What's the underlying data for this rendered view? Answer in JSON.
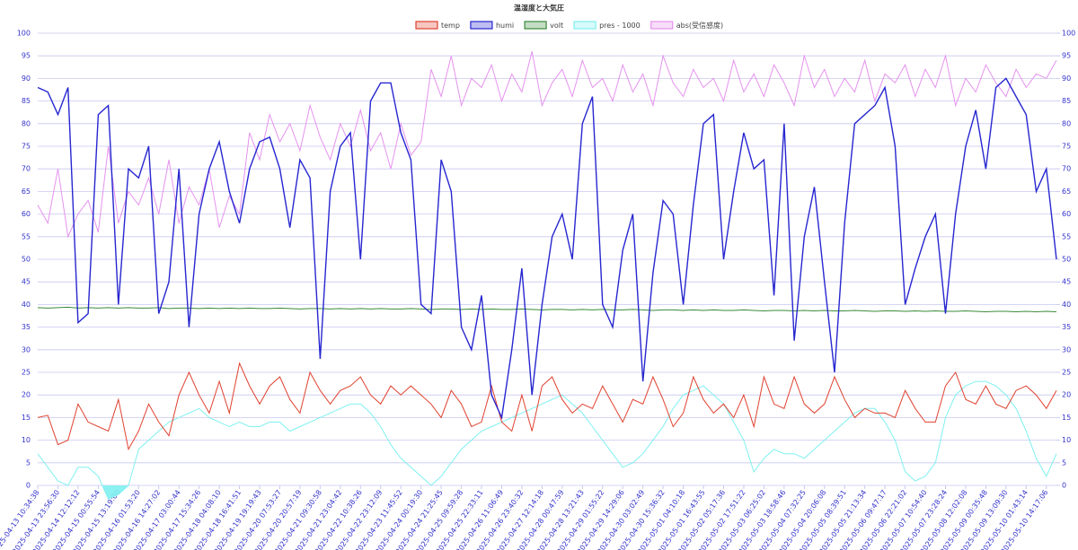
{
  "chart_data": {
    "type": "line",
    "title": "温湿度と大気圧",
    "categories": [
      "2025-04-13 10:34:38",
      null,
      "2025-04-13 23:56:30",
      null,
      "2025-04-14 12:12:12",
      null,
      "2025-04-15 00:55:54",
      null,
      "2025-04-15 13:19:00",
      null,
      "2025-04-16 01:53:20",
      null,
      "2025-04-16 14:27:02",
      null,
      "2025-04-17 03:00:44",
      null,
      "2025-04-17 15:34:26",
      null,
      "2025-04-18 04:08:10",
      null,
      "2025-04-18 16:41:51",
      null,
      "2025-04-19 19:19:43",
      null,
      "2025-04-20 07:53:27",
      null,
      "2025-04-20 20:57:19",
      null,
      "2025-04-21 09:30:58",
      null,
      "2025-04-21 23:04:42",
      null,
      "2025-04-22 10:38:26",
      null,
      "2025-04-22 23:12:09",
      null,
      "2025-04-23 11:45:52",
      null,
      "2025-04-24 00:19:30",
      null,
      "2025-04-24 21:25:45",
      null,
      "2025-04-25 09:59:28",
      null,
      "2025-04-25 22:33:11",
      null,
      "2025-04-26 11:06:49",
      null,
      "2025-04-26 23:40:32",
      null,
      "2025-04-27 12:14:18",
      null,
      "2025-04-28 00:47:59",
      null,
      "2025-04-28 13:21:43",
      null,
      "2025-04-29 01:55:22",
      null,
      "2025-04-29 14:29:06",
      null,
      "2025-04-30 03:02:49",
      null,
      "2025-04-30 15:36:32",
      null,
      "2025-05-01 04:10:18",
      null,
      "2025-05-01 16:43:55",
      null,
      "2025-05-02 05:17:36",
      null,
      "2025-05-02 17:51:22",
      null,
      "2025-05-03 06:25:02",
      null,
      "2025-05-03 18:58:46",
      null,
      "2025-05-04 07:32:25",
      null,
      "2025-05-04 20:06:08",
      null,
      "2025-05-05 08:39:51",
      null,
      "2025-05-05 21:13:34",
      null,
      "2025-05-06 09:47:17",
      null,
      "2025-05-06 22:21:02",
      null,
      "2025-05-07 10:54:40",
      null,
      "2025-05-07 23:28:24",
      null,
      "2025-05-08 12:02:08",
      null,
      "2025-05-09 00:35:48",
      null,
      "2025-05-09 13:09:30",
      null,
      "2025-05-10 01:43:14",
      null,
      "2025-05-10 14:17:06",
      null
    ],
    "series": [
      {
        "name": "temp",
        "color": "#e0412f",
        "values": [
          15,
          15.5,
          9,
          10,
          18,
          14,
          13,
          12,
          19,
          8,
          12,
          18,
          14,
          11,
          20,
          25,
          20,
          16,
          23,
          16,
          27,
          22,
          18,
          22,
          24,
          19,
          16,
          25,
          21,
          18,
          21,
          22,
          24,
          20,
          18,
          22,
          20,
          22,
          20,
          18,
          15,
          21,
          18,
          13,
          14,
          22,
          14,
          12,
          20,
          12,
          22,
          24,
          19,
          16,
          18,
          17,
          22,
          18,
          14,
          19,
          18,
          24,
          19,
          13,
          16,
          24,
          19,
          16,
          18,
          15,
          20,
          13,
          24,
          18,
          17,
          24,
          18,
          16,
          18,
          24,
          19,
          15,
          17,
          16,
          16,
          15,
          21,
          17,
          14,
          14,
          22,
          25,
          19,
          18,
          22,
          18,
          17,
          21,
          22,
          20,
          17,
          21
        ]
      },
      {
        "name": "humi",
        "color": "#2626d0",
        "values": [
          88,
          87,
          82,
          88,
          36,
          38,
          82,
          84,
          40,
          70,
          68,
          75,
          38,
          45,
          70,
          35,
          60,
          70,
          76,
          65,
          58,
          70,
          76,
          77,
          70,
          57,
          72,
          68,
          28,
          65,
          75,
          78,
          50,
          85,
          89,
          89,
          78,
          72,
          40,
          38,
          72,
          65,
          35,
          30,
          42,
          20,
          15,
          30,
          48,
          20,
          40,
          55,
          60,
          50,
          80,
          86,
          40,
          35,
          52,
          60,
          23,
          47,
          63,
          60,
          40,
          62,
          80,
          82,
          50,
          65,
          78,
          70,
          72,
          42,
          80,
          32,
          55,
          66,
          45,
          25,
          58,
          80,
          82,
          84,
          88,
          75,
          40,
          48,
          55,
          60,
          38,
          60,
          75,
          83,
          70,
          88,
          90,
          86,
          82,
          65,
          70,
          50
        ]
      },
      {
        "name": "volt",
        "color": "#3a8a3a",
        "values": [
          39.3,
          39.2,
          39.3,
          39.4,
          39.2,
          39.3,
          39.2,
          39.3,
          39.2,
          39.3,
          39.2,
          39.2,
          39.3,
          39.1,
          39.2,
          39.2,
          39.1,
          39.2,
          39.1,
          39.2,
          39.1,
          39.2,
          39.1,
          39.1,
          39.2,
          39.1,
          39,
          39.1,
          39.1,
          39,
          39.1,
          39,
          39.1,
          39,
          39.1,
          39,
          39,
          39.1,
          39,
          38.9,
          39,
          39,
          38.9,
          39,
          38.9,
          39,
          38.9,
          38.9,
          39,
          38.9,
          38.8,
          38.9,
          38.9,
          38.8,
          38.9,
          38.8,
          38.9,
          38.8,
          38.8,
          38.9,
          38.8,
          38.7,
          38.8,
          38.8,
          38.7,
          38.8,
          38.7,
          38.8,
          38.7,
          38.7,
          38.8,
          38.7,
          38.6,
          38.7,
          38.7,
          38.6,
          38.7,
          38.6,
          38.7,
          38.6,
          38.6,
          38.7,
          38.6,
          38.5,
          38.6,
          38.6,
          38.5,
          38.6,
          38.5,
          38.6,
          38.5,
          38.5,
          38.6,
          38.5,
          38.4,
          38.5,
          38.5,
          38.4,
          38.5,
          38.4,
          38.5,
          38.4
        ]
      },
      {
        "name": "pres - 1000",
        "color": "#7ff0f0",
        "values": [
          7,
          4,
          1,
          0,
          4,
          4,
          2,
          -3,
          -2,
          0,
          8,
          10,
          12,
          14,
          15,
          16,
          17,
          15,
          14,
          13,
          14,
          13,
          13,
          14,
          14,
          12,
          13,
          14,
          15,
          16,
          17,
          18,
          18,
          16,
          13,
          9,
          6,
          4,
          2,
          0,
          2,
          5,
          8,
          10,
          12,
          13,
          14,
          15,
          16,
          17,
          18,
          19,
          20,
          18,
          16,
          13,
          10,
          7,
          4,
          5,
          7,
          10,
          13,
          17,
          20,
          21,
          22,
          20,
          18,
          14,
          10,
          3,
          6,
          8,
          7,
          7,
          6,
          8,
          10,
          12,
          14,
          16,
          17,
          17,
          14,
          10,
          3,
          1,
          2,
          5,
          15,
          20,
          22,
          23,
          23,
          22,
          20,
          17,
          12,
          6,
          2,
          7
        ]
      },
      {
        "name": "abs(受信感度)",
        "color": "#e592ee",
        "values": [
          62,
          58,
          70,
          55,
          60,
          63,
          56,
          75,
          58,
          65,
          62,
          68,
          60,
          72,
          58,
          66,
          62,
          70,
          57,
          64,
          60,
          78,
          72,
          82,
          76,
          80,
          74,
          84,
          77,
          72,
          80,
          75,
          83,
          74,
          78,
          70,
          80,
          73,
          76,
          92,
          86,
          95,
          84,
          90,
          88,
          93,
          85,
          91,
          87,
          96,
          84,
          89,
          92,
          86,
          94,
          88,
          90,
          85,
          93,
          87,
          91,
          84,
          95,
          89,
          86,
          92,
          88,
          90,
          85,
          94,
          87,
          91,
          86,
          93,
          89,
          84,
          95,
          88,
          92,
          86,
          90,
          87,
          94,
          85,
          91,
          89,
          93,
          86,
          92,
          88,
          95,
          84,
          90,
          87,
          93,
          89,
          86,
          92,
          88,
          91,
          90,
          94
        ]
      }
    ],
    "ylim": [
      0,
      100
    ],
    "yticks": [
      0,
      5,
      10,
      15,
      20,
      25,
      30,
      35,
      40,
      45,
      50,
      55,
      60,
      65,
      70,
      75,
      80,
      85,
      90,
      95,
      100
    ],
    "y2lim": [
      0,
      100
    ],
    "y2ticks": [
      0,
      5,
      10,
      15,
      20,
      25,
      30,
      35,
      40,
      45,
      50,
      55,
      60,
      65,
      70,
      75,
      80,
      85,
      90,
      95,
      100
    ],
    "grid": true
  }
}
